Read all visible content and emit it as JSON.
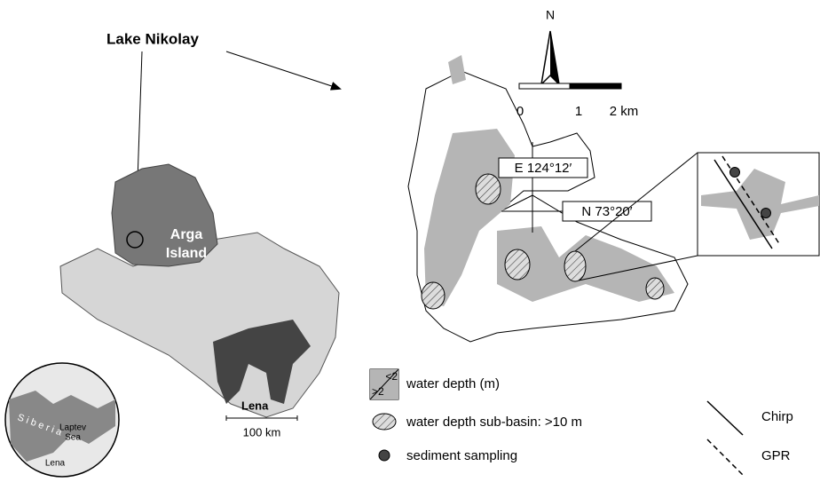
{
  "title_label": "Lake Nikolay",
  "overview_map": {
    "island_label": [
      "Arga",
      "Island"
    ],
    "river_label": "Lena",
    "scale_bar": "100 km"
  },
  "globe": {
    "sea_label": [
      "Laptev",
      "Sea"
    ],
    "region_label": "Siberia",
    "river_label": "Lena"
  },
  "lake_map": {
    "north_arrow": "N",
    "scale_ticks": [
      "0",
      "1",
      "2 km"
    ],
    "longitude": "E 124°12′",
    "latitude": "N 73°20′"
  },
  "legend": {
    "depth_low": "<2",
    "depth_high": ">2",
    "water_depth": "water depth (m)",
    "sub_basin": "water depth sub-basin: >10 m",
    "sampling": "sediment sampling",
    "chirp": "Chirp",
    "gpr": "GPR"
  }
}
